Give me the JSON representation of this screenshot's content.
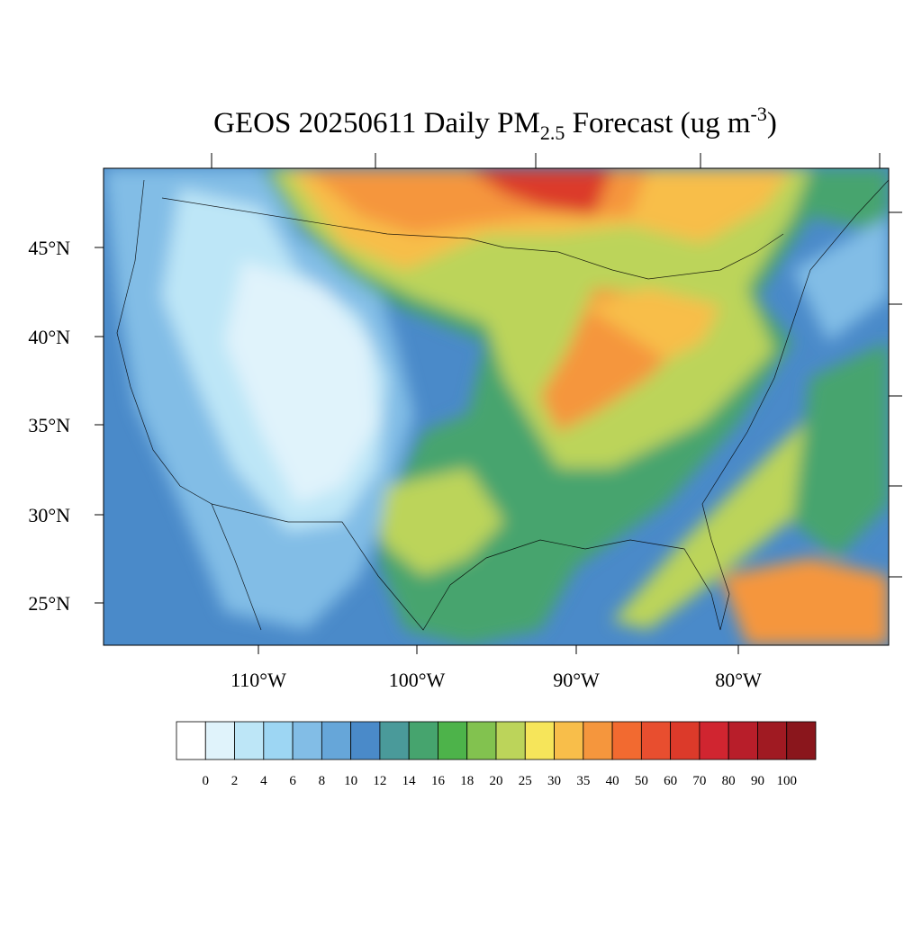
{
  "title": {
    "main": "GEOS 20250611 Daily PM",
    "sub": "2.5",
    "mid": " Forecast (ug m",
    "sup": "-3",
    "end": ")"
  },
  "lat_labels": [
    "45°N",
    "40°N",
    "35°N",
    "30°N",
    "25°N"
  ],
  "lon_labels": [
    "110°W",
    "100°W",
    "90°W",
    "80°W"
  ],
  "colorbar": {
    "colors": [
      "#ffffff",
      "#e0f3fb",
      "#bde6f7",
      "#9dd6f3",
      "#82bde6",
      "#66a6d9",
      "#4a8ac9",
      "#4a9a9a",
      "#46a46e",
      "#4db34a",
      "#82c24f",
      "#bcd45a",
      "#f6e55a",
      "#f8be4a",
      "#f5963d",
      "#f26a30",
      "#e84e2f",
      "#dc3a2a",
      "#d02530",
      "#b81e2a",
      "#a01a22",
      "#8a161c"
    ],
    "labels": [
      0,
      2,
      4,
      6,
      8,
      10,
      12,
      14,
      16,
      18,
      20,
      25,
      30,
      35,
      40,
      50,
      60,
      70,
      80,
      90,
      100
    ]
  }
}
